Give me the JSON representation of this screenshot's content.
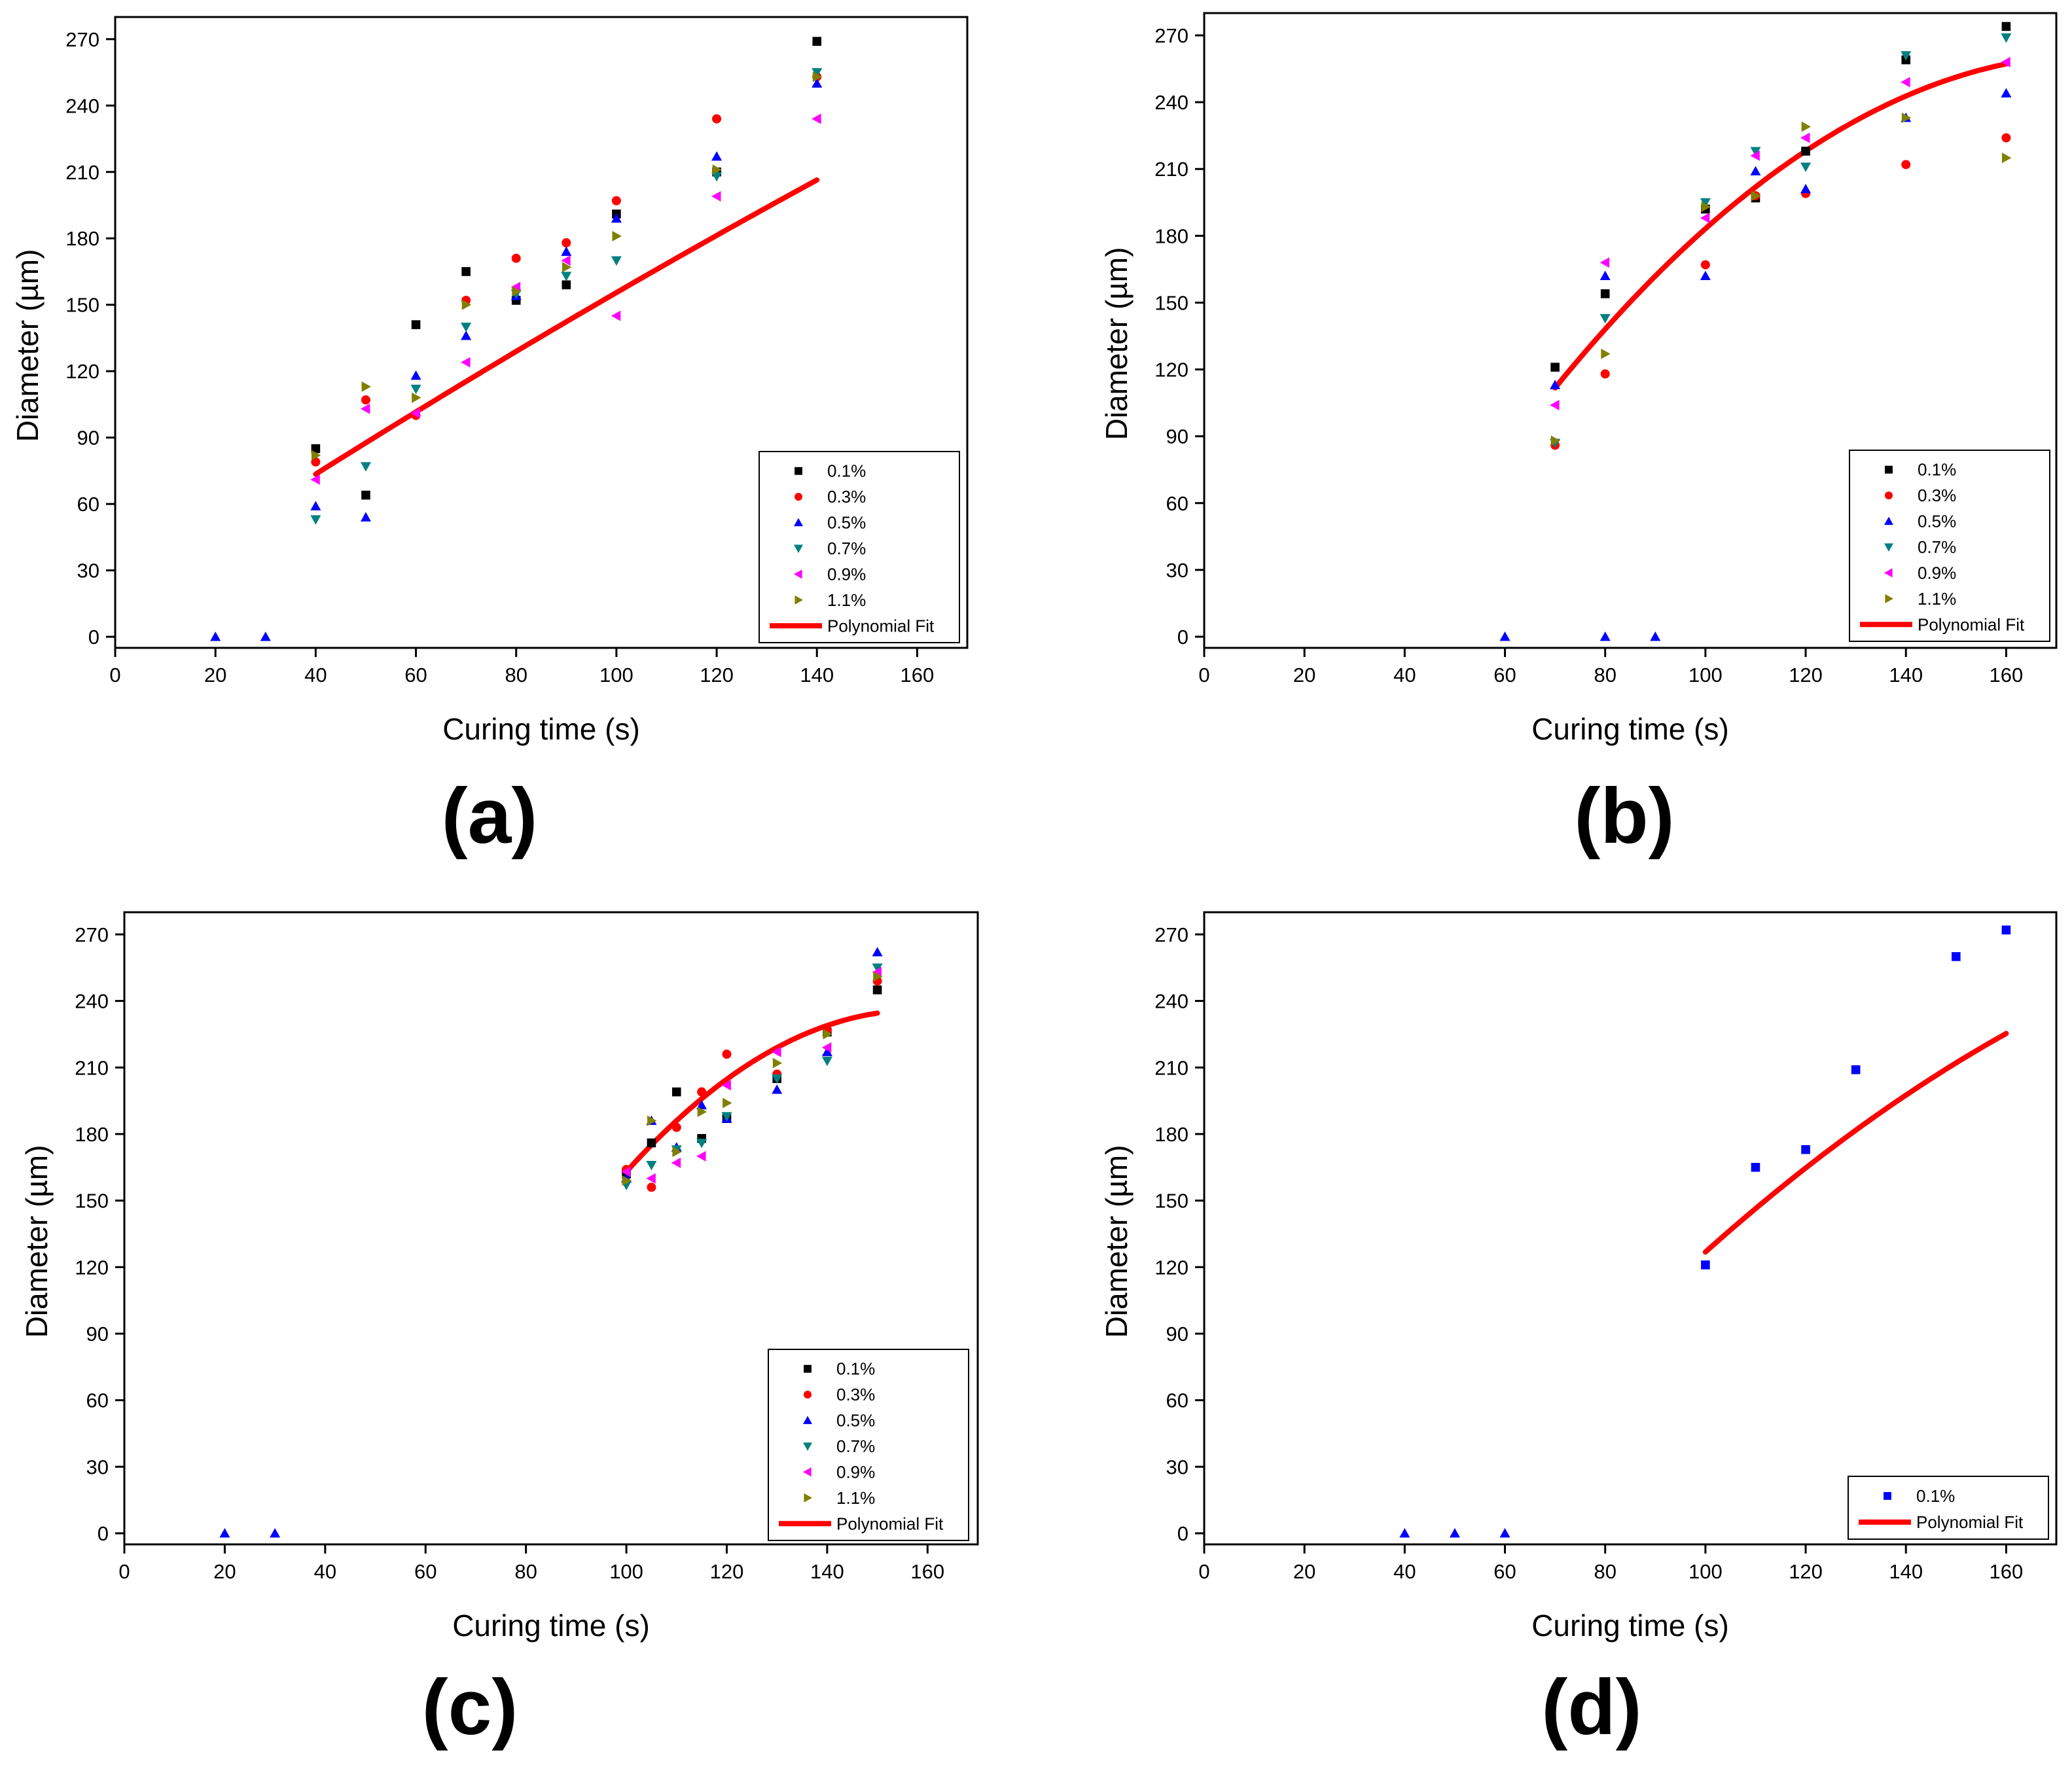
{
  "figure": {
    "panel_labels": [
      "(a)",
      "(b)",
      "(c)",
      "(d)"
    ]
  },
  "chart_data": [
    {
      "type": "scatter",
      "label": "(a)",
      "xlabel": "Curing time (s)",
      "ylabel": "Diameter (µm)",
      "xlim": [
        0,
        170
      ],
      "ylim": [
        -5,
        280
      ],
      "xticks": [
        0,
        20,
        40,
        60,
        80,
        100,
        120,
        140,
        160
      ],
      "yticks": [
        0,
        30,
        60,
        90,
        120,
        150,
        180,
        210,
        240,
        270
      ],
      "legend_position": "bottom-right",
      "series": [
        {
          "name": "0.1%",
          "marker": "square",
          "color": "#000000",
          "points": [
            [
              40,
              85
            ],
            [
              50,
              64
            ],
            [
              60,
              141
            ],
            [
              70,
              165
            ],
            [
              80,
              152
            ],
            [
              90,
              159
            ],
            [
              100,
              191
            ],
            [
              120,
              210
            ],
            [
              140,
              269
            ]
          ]
        },
        {
          "name": "0.3%",
          "marker": "circle",
          "color": "#ff0000",
          "points": [
            [
              40,
              79
            ],
            [
              50,
              107
            ],
            [
              60,
              100
            ],
            [
              70,
              152
            ],
            [
              80,
              171
            ],
            [
              90,
              178
            ],
            [
              100,
              197
            ],
            [
              120,
              234
            ],
            [
              140,
              253
            ]
          ]
        },
        {
          "name": "0.5%",
          "marker": "triangle-up",
          "color": "#0000ff",
          "points": [
            [
              20,
              0
            ],
            [
              30,
              0
            ],
            [
              40,
              59
            ],
            [
              50,
              54
            ],
            [
              60,
              118
            ],
            [
              70,
              136
            ],
            [
              80,
              154
            ],
            [
              90,
              174
            ],
            [
              100,
              189
            ],
            [
              120,
              217
            ],
            [
              140,
              250
            ]
          ]
        },
        {
          "name": "0.7%",
          "marker": "triangle-down",
          "color": "#008080",
          "points": [
            [
              40,
              53
            ],
            [
              50,
              77
            ],
            [
              60,
              112
            ],
            [
              70,
              140
            ],
            [
              80,
              155
            ],
            [
              90,
              163
            ],
            [
              100,
              170
            ],
            [
              120,
              208
            ],
            [
              140,
              255
            ]
          ]
        },
        {
          "name": "0.9%",
          "marker": "triangle-left",
          "color": "#ff00ff",
          "points": [
            [
              40,
              71
            ],
            [
              50,
              103
            ],
            [
              60,
              101
            ],
            [
              70,
              124
            ],
            [
              80,
              158
            ],
            [
              90,
              170
            ],
            [
              100,
              145
            ],
            [
              120,
              199
            ],
            [
              140,
              234
            ]
          ]
        },
        {
          "name": "1.1%",
          "marker": "triangle-right",
          "color": "#808000",
          "points": [
            [
              40,
              82
            ],
            [
              50,
              113
            ],
            [
              60,
              108
            ],
            [
              70,
              150
            ],
            [
              80,
              156
            ],
            [
              90,
              167
            ],
            [
              100,
              181
            ],
            [
              120,
              211
            ],
            [
              140,
              253
            ]
          ]
        }
      ],
      "fit": {
        "name": "Polynomial Fit",
        "color": "#ff0000",
        "x_range": [
          40,
          140
        ],
        "coefficients": [
          15.0,
          1.5,
          -0.00095
        ]
      }
    },
    {
      "type": "scatter",
      "label": "(b)",
      "xlabel": "Curing time (s)",
      "ylabel": "Diameter (µm)",
      "xlim": [
        0,
        170
      ],
      "ylim": [
        -5,
        280
      ],
      "xticks": [
        0,
        20,
        40,
        60,
        80,
        100,
        120,
        140,
        160
      ],
      "yticks": [
        0,
        30,
        60,
        90,
        120,
        150,
        180,
        210,
        240,
        270
      ],
      "legend_position": "bottom-right",
      "series": [
        {
          "name": "0.1%",
          "marker": "square",
          "color": "#000000",
          "points": [
            [
              70,
              121
            ],
            [
              80,
              154
            ],
            [
              100,
              192
            ],
            [
              110,
              197
            ],
            [
              120,
              218
            ],
            [
              140,
              259
            ],
            [
              160,
              274
            ]
          ]
        },
        {
          "name": "0.3%",
          "marker": "circle",
          "color": "#ff0000",
          "points": [
            [
              70,
              86
            ],
            [
              80,
              118
            ],
            [
              100,
              167
            ],
            [
              110,
              198
            ],
            [
              120,
              199
            ],
            [
              140,
              212
            ],
            [
              160,
              224
            ]
          ]
        },
        {
          "name": "0.5%",
          "marker": "triangle-up",
          "color": "#0000ff",
          "points": [
            [
              60,
              0
            ],
            [
              70,
              113
            ],
            [
              80,
              0
            ],
            [
              80,
              162
            ],
            [
              90,
              0
            ],
            [
              100,
              162
            ],
            [
              110,
              209
            ],
            [
              120,
              201
            ],
            [
              140,
              233
            ],
            [
              160,
              244
            ]
          ]
        },
        {
          "name": "0.7%",
          "marker": "triangle-down",
          "color": "#008080",
          "points": [
            [
              70,
              87
            ],
            [
              80,
              143
            ],
            [
              100,
              195
            ],
            [
              110,
              218
            ],
            [
              120,
              211
            ],
            [
              140,
              261
            ],
            [
              160,
              269
            ]
          ]
        },
        {
          "name": "0.9%",
          "marker": "triangle-left",
          "color": "#ff00ff",
          "points": [
            [
              70,
              104
            ],
            [
              80,
              168
            ],
            [
              100,
              188
            ],
            [
              110,
              216
            ],
            [
              120,
              224
            ],
            [
              140,
              249
            ],
            [
              160,
              258
            ]
          ]
        },
        {
          "name": "1.1%",
          "marker": "triangle-right",
          "color": "#808000",
          "points": [
            [
              70,
              88
            ],
            [
              80,
              127
            ],
            [
              100,
              193
            ],
            [
              110,
              198
            ],
            [
              120,
              229
            ],
            [
              140,
              233
            ],
            [
              160,
              215
            ]
          ]
        }
      ],
      "fit": {
        "name": "Polynomial Fit",
        "color": "#ff0000",
        "x_range": [
          70,
          160
        ],
        "coefficients": [
          -144.6,
          4.556,
          -0.01278
        ]
      }
    },
    {
      "type": "scatter",
      "label": "(c)",
      "xlabel": "Curing time (s)",
      "ylabel": "Diameter (µm)",
      "xlim": [
        0,
        170
      ],
      "ylim": [
        -5,
        280
      ],
      "xticks": [
        0,
        20,
        40,
        60,
        80,
        100,
        120,
        140,
        160
      ],
      "yticks": [
        0,
        30,
        60,
        90,
        120,
        150,
        180,
        210,
        240,
        270
      ],
      "legend_position": "bottom-right",
      "series": [
        {
          "name": "0.1%",
          "marker": "square",
          "color": "#000000",
          "points": [
            [
              100,
              162
            ],
            [
              105,
              176
            ],
            [
              110,
              199
            ],
            [
              115,
              178
            ],
            [
              120,
              187
            ],
            [
              130,
              205
            ],
            [
              140,
              226
            ],
            [
              150,
              245
            ]
          ]
        },
        {
          "name": "0.3%",
          "marker": "circle",
          "color": "#ff0000",
          "points": [
            [
              100,
              164
            ],
            [
              105,
              156
            ],
            [
              110,
              183
            ],
            [
              115,
              199
            ],
            [
              120,
              216
            ],
            [
              130,
              207
            ],
            [
              140,
              227
            ],
            [
              150,
              249
            ]
          ]
        },
        {
          "name": "0.5%",
          "marker": "triangle-up",
          "color": "#0000ff",
          "points": [
            [
              20,
              0
            ],
            [
              30,
              0
            ],
            [
              100,
              160
            ],
            [
              105,
              186
            ],
            [
              110,
              174
            ],
            [
              115,
              193
            ],
            [
              120,
              187
            ],
            [
              130,
              200
            ],
            [
              140,
              217
            ],
            [
              150,
              262
            ]
          ]
        },
        {
          "name": "0.7%",
          "marker": "triangle-down",
          "color": "#008080",
          "points": [
            [
              100,
              157
            ],
            [
              105,
              166
            ],
            [
              110,
              173
            ],
            [
              115,
              176
            ],
            [
              120,
              188
            ],
            [
              130,
              205
            ],
            [
              140,
              213
            ],
            [
              150,
              255
            ]
          ]
        },
        {
          "name": "0.9%",
          "marker": "triangle-left",
          "color": "#ff00ff",
          "points": [
            [
              100,
              163
            ],
            [
              105,
              160
            ],
            [
              110,
              167
            ],
            [
              115,
              170
            ],
            [
              120,
              202
            ],
            [
              130,
              217
            ],
            [
              140,
              219
            ],
            [
              150,
              253
            ]
          ]
        },
        {
          "name": "1.1%",
          "marker": "triangle-right",
          "color": "#808000",
          "points": [
            [
              100,
              159
            ],
            [
              105,
              186
            ],
            [
              110,
              172
            ],
            [
              115,
              190
            ],
            [
              120,
              194
            ],
            [
              130,
              212
            ],
            [
              140,
              225
            ],
            [
              150,
              251
            ]
          ]
        }
      ],
      "fit": {
        "name": "Polynomial Fit",
        "color": "#ff0000",
        "x_range": [
          100,
          150
        ],
        "coefficients": [
          -307,
          6.88,
          -0.0218
        ]
      }
    },
    {
      "type": "scatter",
      "label": "(d)",
      "xlabel": "Curing time (s)",
      "ylabel": "Diameter (µm)",
      "xlim": [
        0,
        170
      ],
      "ylim": [
        -5,
        280
      ],
      "xticks": [
        0,
        20,
        40,
        60,
        80,
        100,
        120,
        140,
        160
      ],
      "yticks": [
        0,
        30,
        60,
        90,
        120,
        150,
        180,
        210,
        240,
        270
      ],
      "legend_position": "bottom-right",
      "series": [
        {
          "name": "0.1%",
          "marker": "square",
          "color": "#0000ff",
          "points": [
            [
              100,
              121
            ],
            [
              110,
              165
            ],
            [
              120,
              173
            ],
            [
              130,
              209
            ],
            [
              150,
              260
            ],
            [
              160,
              272
            ]
          ]
        },
        {
          "name": "",
          "marker": "triangle-up",
          "color": "#0000ff",
          "points": [
            [
              40,
              0
            ],
            [
              50,
              0
            ],
            [
              60,
              0
            ]
          ]
        }
      ],
      "fit": {
        "name": "Polynomial Fit",
        "color": "#ff0000",
        "x_range": [
          100,
          160
        ],
        "coefficients": [
          -138.2,
          3.28,
          -0.0063
        ]
      }
    }
  ]
}
